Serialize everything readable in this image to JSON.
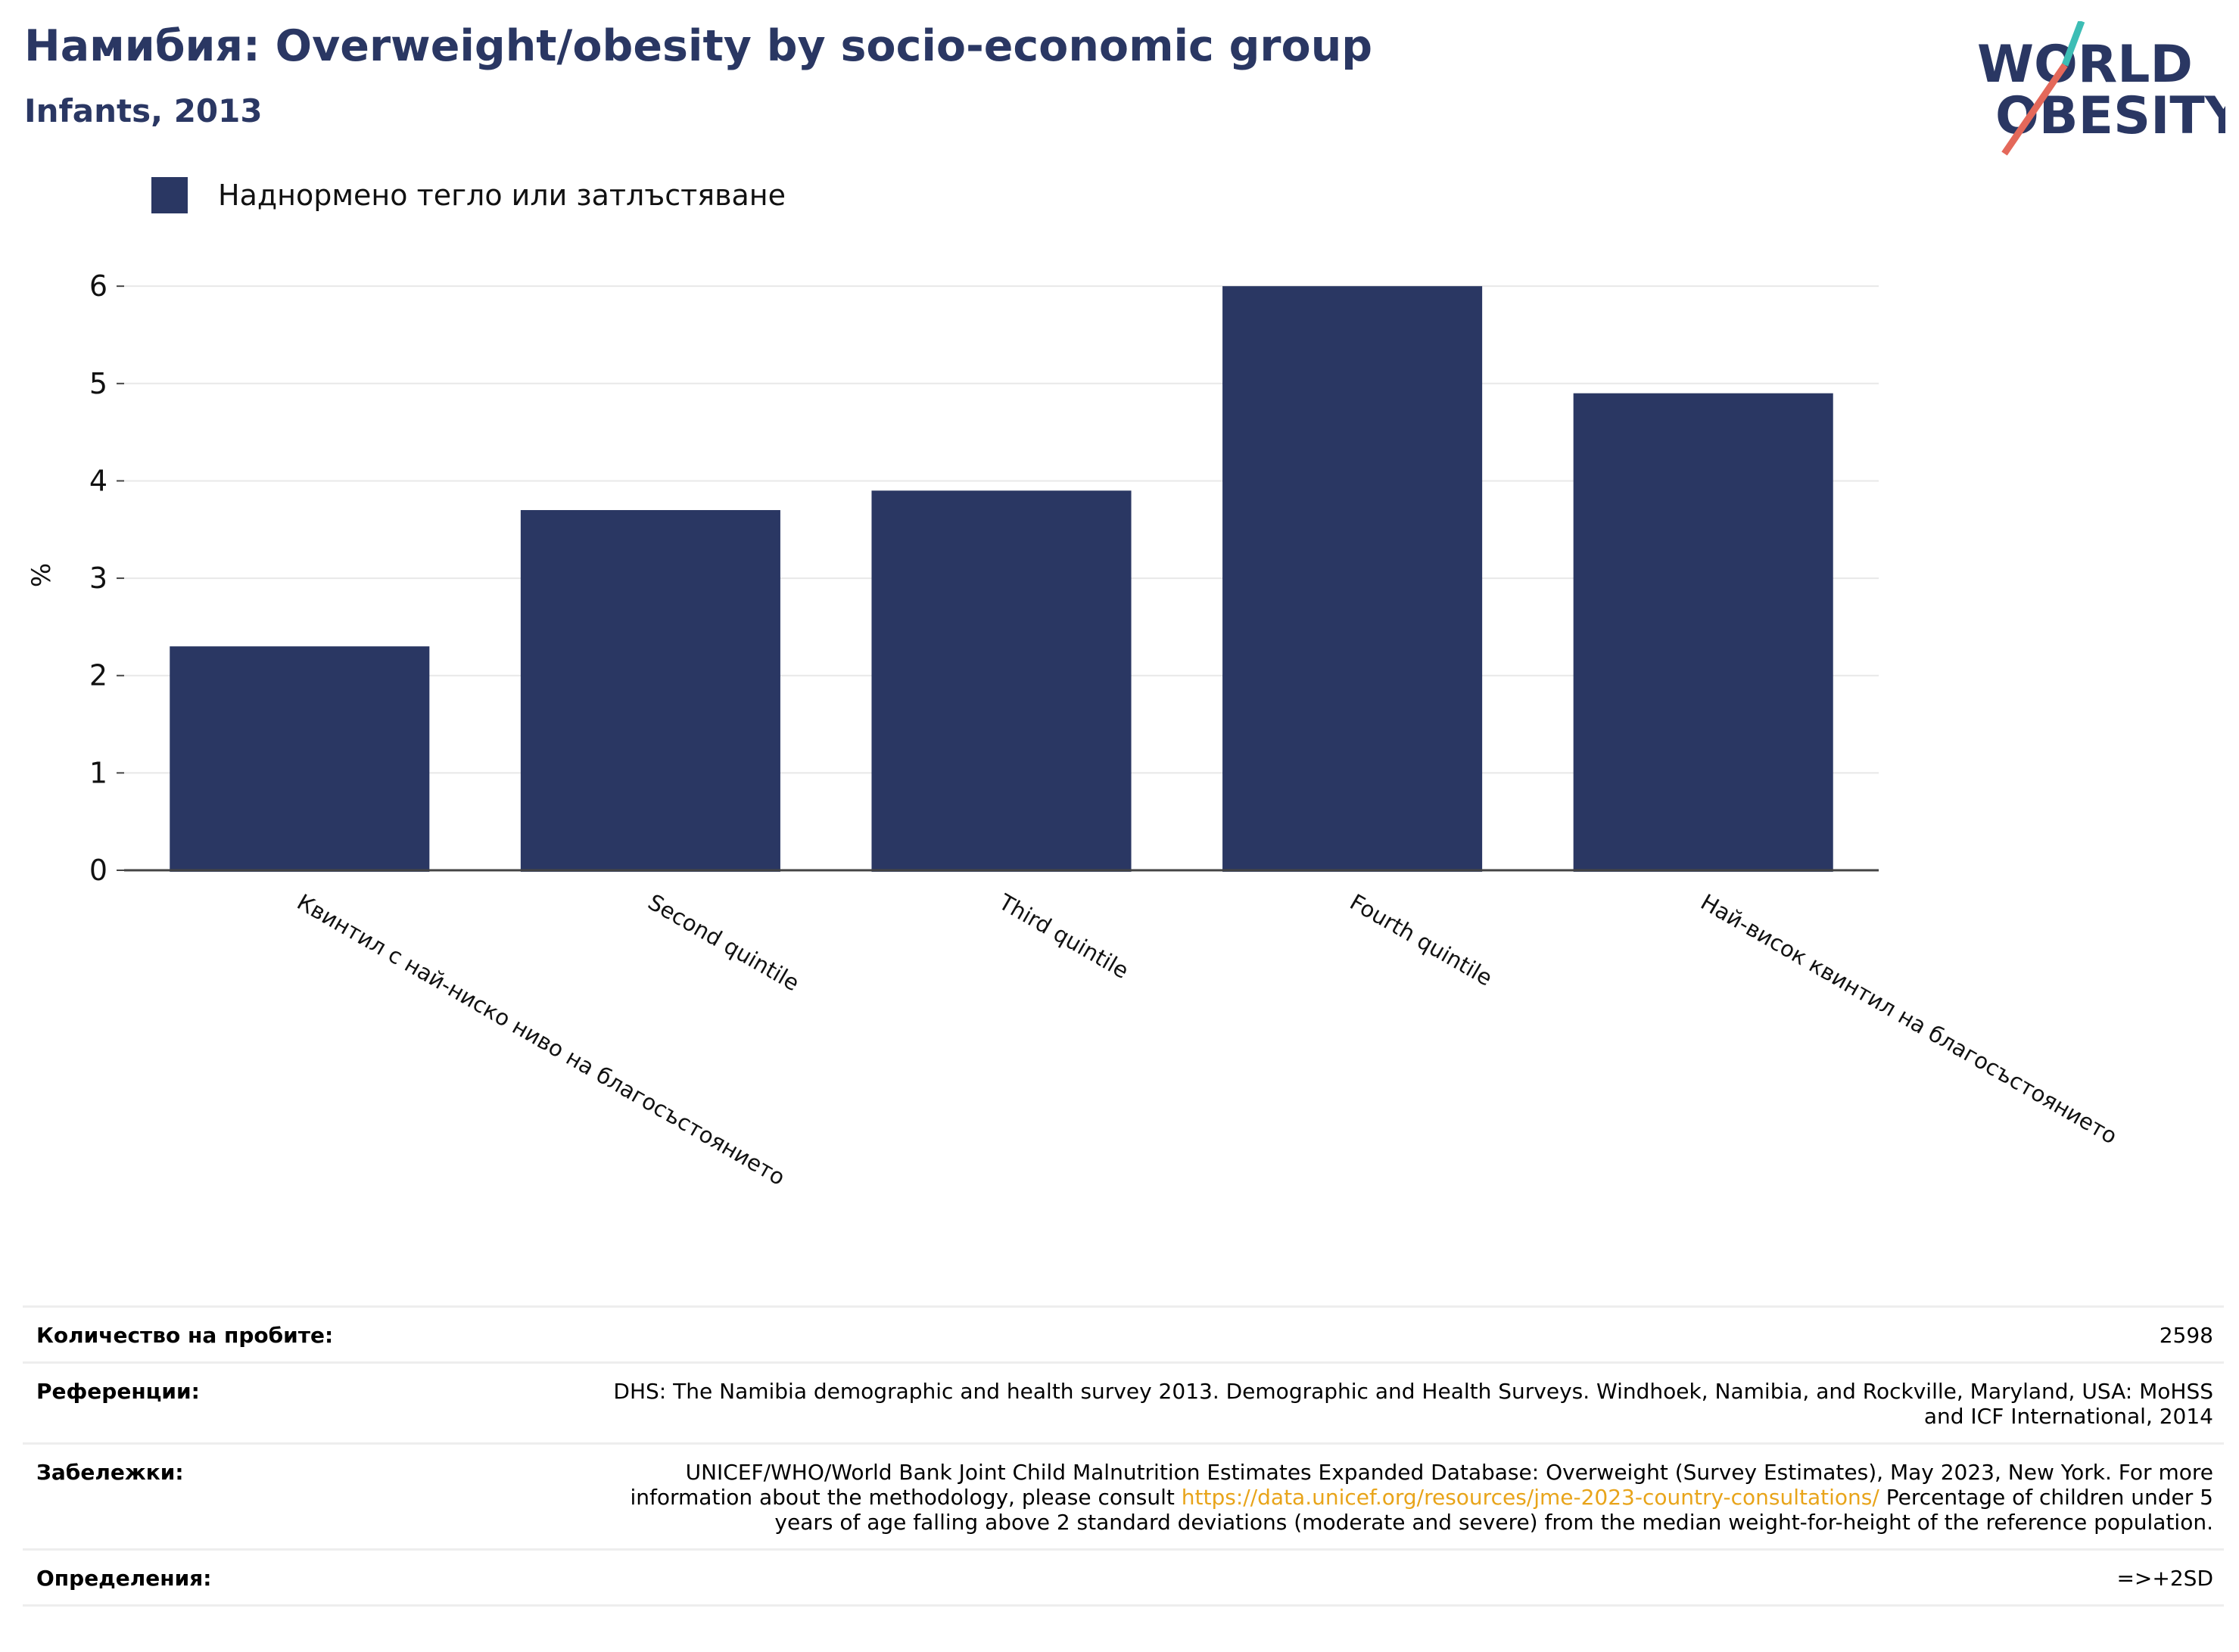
{
  "header": {
    "title": "Намибия: Overweight/obesity by socio-economic group",
    "subtitle": "Infants, 2013"
  },
  "logo": {
    "line1": "WORLD",
    "line2": "OBESITY",
    "colors": {
      "text": "#2a3763",
      "slash_top": "#3dbdb5",
      "slash_bottom": "#e4685a"
    }
  },
  "chart_data": {
    "type": "bar",
    "categories": [
      "Квинтил с най-ниско ниво на благосъстоянието",
      "Second quintile",
      "Third quintile",
      "Fourth quintile",
      "Най-висок квинтил на благосъстоянието"
    ],
    "series": [
      {
        "name": "Наднормено тегло или затлъстяване",
        "values": [
          2.3,
          3.7,
          3.9,
          6.0,
          4.9
        ],
        "color": "#2a3763"
      }
    ],
    "ylabel": "%",
    "yticks": [
      "0",
      "1",
      "2",
      "3",
      "4",
      "5",
      "6"
    ],
    "ylim": [
      0,
      6.25
    ],
    "grid": true,
    "legend_position": "top-left"
  },
  "info": {
    "rows": [
      {
        "key": "Количество на пробите:",
        "value": "2598"
      },
      {
        "key": "Референции:",
        "value": "DHS: The Namibia demographic and health survey 2013. Demographic and Health Surveys. Windhoek, Namibia, and Rockville, Maryland, USA: MoHSS and ICF International, 2014"
      },
      {
        "key": "Забележки:",
        "value_before": "UNICEF/WHO/World Bank Joint Child Malnutrition Estimates Expanded Database: Overweight (Survey Estimates), May 2023, New York. For more information about the methodology, please consult ",
        "link": "https://data.unicef.org/resources/jme-2023-country-consultations/",
        "value_after": " Percentage of children under 5 years of age falling above 2 standard deviations (moderate and severe) from the median weight-for-height of the reference population."
      },
      {
        "key": "Определения:",
        "value": "=>+2SD"
      }
    ]
  }
}
